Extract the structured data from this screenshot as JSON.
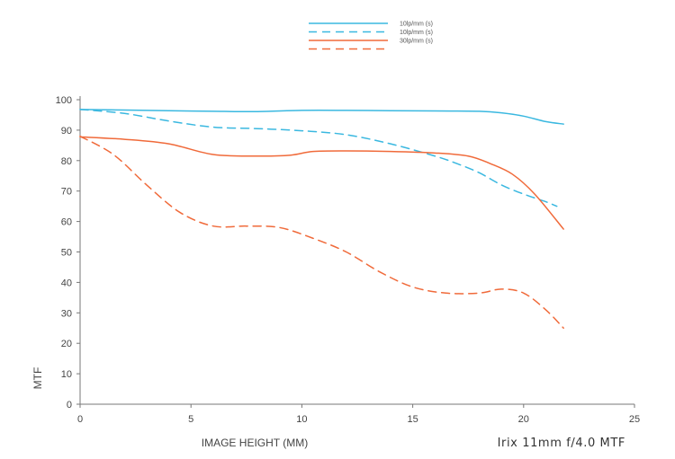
{
  "chart_data": {
    "type": "line",
    "title": "Irix 11mm f/4.0 MTF",
    "xlabel": "IMAGE HEIGHT (MM)",
    "ylabel": "MTF",
    "xlim": [
      0,
      25
    ],
    "ylim": [
      0,
      100
    ],
    "x_ticks": [
      0,
      5,
      10,
      15,
      20,
      25
    ],
    "y_ticks": [
      0,
      10,
      20,
      30,
      40,
      50,
      60,
      70,
      80,
      90,
      100
    ],
    "grid": false,
    "legend_position": "top",
    "series": [
      {
        "name": "10lp/mm (s)",
        "color": "#3ab8e0",
        "style": "solid",
        "x": [
          0,
          2,
          4,
          6,
          8,
          10,
          12,
          14,
          16,
          18,
          19,
          20,
          21,
          21.8
        ],
        "y": [
          96.8,
          96.6,
          96.4,
          96.2,
          96.1,
          96.5,
          96.5,
          96.4,
          96.3,
          96.2,
          95.7,
          94.6,
          92.8,
          92
        ]
      },
      {
        "name": "10lp/mm (s)",
        "color": "#3ab8e0",
        "style": "dashed",
        "x": [
          0,
          2,
          4,
          6,
          8,
          10,
          12,
          14,
          16,
          17,
          18,
          19,
          20,
          21,
          21.5
        ],
        "y": [
          96.8,
          95.5,
          93,
          91,
          90.5,
          89.8,
          88.5,
          85.5,
          81.5,
          79,
          76,
          72,
          69,
          66.5,
          65
        ]
      },
      {
        "name": "30lp/mm (s)",
        "color": "#f06a3a",
        "style": "solid",
        "x": [
          0,
          2,
          4,
          6,
          8,
          9.5,
          10.5,
          12,
          14,
          16,
          17.5,
          18.5,
          19.5,
          20.5,
          21.8
        ],
        "y": [
          87.8,
          87,
          85.5,
          82,
          81.5,
          81.8,
          83,
          83.2,
          83,
          82.5,
          81.5,
          79,
          75.5,
          69,
          57.5
        ]
      },
      {
        "name": "",
        "color": "#f06a3a",
        "style": "dashed",
        "x": [
          0,
          1.5,
          3,
          4.5,
          6,
          7.5,
          9,
          10.5,
          12,
          13.5,
          15,
          16.5,
          18,
          19,
          20,
          21,
          21.8
        ],
        "y": [
          88,
          82,
          72,
          63,
          58.5,
          58.5,
          58,
          54.5,
          50,
          43.5,
          38.5,
          36.5,
          36.5,
          37.8,
          36.5,
          31,
          25
        ]
      }
    ]
  }
}
